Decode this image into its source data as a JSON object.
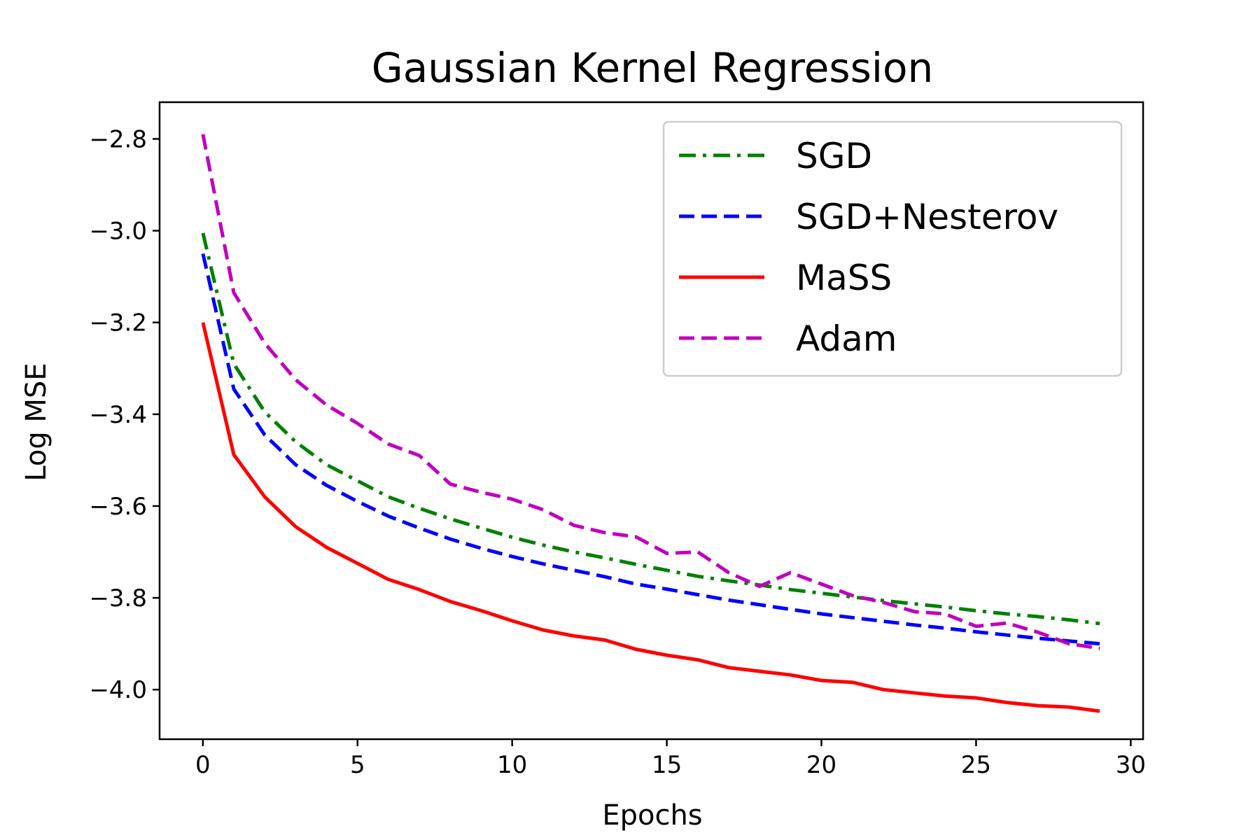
{
  "chart_data": {
    "type": "line",
    "title": "Gaussian Kernel Regression",
    "xlabel": "Epochs",
    "ylabel": "Log MSE",
    "xlim": [
      -1.4,
      30.4
    ],
    "ylim": [
      -4.108,
      -2.72
    ],
    "xticks": [
      0,
      5,
      10,
      15,
      20,
      25,
      30
    ],
    "xtick_labels": [
      "0",
      "5",
      "10",
      "15",
      "20",
      "25",
      "30"
    ],
    "yticks": [
      -2.8,
      -3.0,
      -3.2,
      -3.4,
      -3.6,
      -3.8,
      -4.0
    ],
    "ytick_labels": [
      "−2.8",
      "−3.0",
      "−3.2",
      "−3.4",
      "−3.6",
      "−3.8",
      "−4.0"
    ],
    "grid": false,
    "legend_position": "upper-right",
    "x": [
      0,
      1,
      2,
      3,
      4,
      5,
      6,
      7,
      8,
      9,
      10,
      11,
      12,
      13,
      14,
      15,
      16,
      17,
      18,
      19,
      20,
      21,
      22,
      23,
      24,
      25,
      26,
      27,
      28,
      29
    ],
    "series": [
      {
        "name": "SGD",
        "color": "#008000",
        "dash": "dashdot",
        "values": [
          -3.005,
          -3.29,
          -3.395,
          -3.46,
          -3.51,
          -3.545,
          -3.58,
          -3.605,
          -3.628,
          -3.648,
          -3.668,
          -3.685,
          -3.7,
          -3.713,
          -3.727,
          -3.74,
          -3.753,
          -3.763,
          -3.772,
          -3.782,
          -3.79,
          -3.798,
          -3.806,
          -3.813,
          -3.82,
          -3.828,
          -3.835,
          -3.841,
          -3.848,
          -3.856
        ]
      },
      {
        "name": "SGD+Nesterov",
        "color": "#0000ff",
        "dash": "dashed",
        "values": [
          -3.05,
          -3.345,
          -3.445,
          -3.51,
          -3.555,
          -3.59,
          -3.622,
          -3.648,
          -3.672,
          -3.692,
          -3.71,
          -3.726,
          -3.74,
          -3.754,
          -3.77,
          -3.781,
          -3.793,
          -3.805,
          -3.815,
          -3.825,
          -3.835,
          -3.843,
          -3.851,
          -3.859,
          -3.866,
          -3.874,
          -3.881,
          -3.888,
          -3.894,
          -3.9
        ]
      },
      {
        "name": "MaSS",
        "color": "#ff0000",
        "dash": "solid",
        "values": [
          -3.2,
          -3.488,
          -3.58,
          -3.645,
          -3.69,
          -3.725,
          -3.76,
          -3.782,
          -3.808,
          -3.828,
          -3.85,
          -3.87,
          -3.883,
          -3.892,
          -3.912,
          -3.925,
          -3.935,
          -3.952,
          -3.96,
          -3.968,
          -3.98,
          -3.984,
          -4.0,
          -4.007,
          -4.014,
          -4.018,
          -4.028,
          -4.035,
          -4.038,
          -4.047
        ]
      },
      {
        "name": "Adam",
        "color": "#bf00bf",
        "dash": "dashed",
        "values": [
          -2.79,
          -3.135,
          -3.245,
          -3.325,
          -3.38,
          -3.42,
          -3.465,
          -3.49,
          -3.552,
          -3.57,
          -3.585,
          -3.608,
          -3.642,
          -3.658,
          -3.667,
          -3.703,
          -3.7,
          -3.745,
          -3.775,
          -3.745,
          -3.77,
          -3.795,
          -3.81,
          -3.83,
          -3.835,
          -3.862,
          -3.855,
          -3.875,
          -3.9,
          -3.91
        ]
      }
    ]
  }
}
